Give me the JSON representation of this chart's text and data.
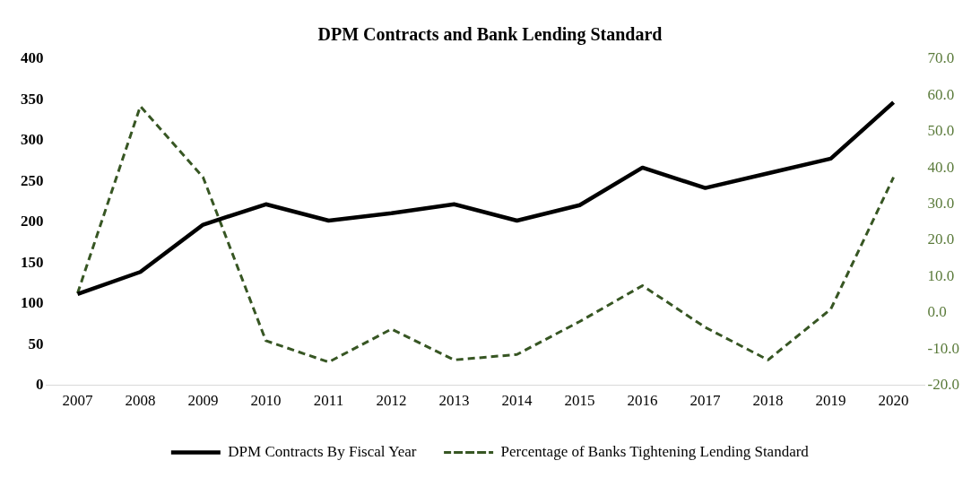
{
  "chart_data": {
    "type": "line",
    "title": "DPM Contracts and Bank Lending Standard",
    "categories": [
      "2007",
      "2008",
      "2009",
      "2010",
      "2011",
      "2012",
      "2013",
      "2014",
      "2015",
      "2016",
      "2017",
      "2018",
      "2019",
      "2020"
    ],
    "series": [
      {
        "name": "DPM Contracts By Fiscal Year",
        "color": "#000000",
        "line_style": "solid",
        "values": [
          112,
          139,
          197,
          222,
          202,
          211,
          222,
          202,
          221,
          267,
          242,
          260,
          278,
          347
        ]
      },
      {
        "name": "Percentage of Banks Tightening Lending Standard",
        "color": "#375623",
        "line_style": "dashed",
        "axis": "y2",
        "values": [
          5.4,
          57,
          37.4,
          -7.7,
          -13.6,
          -4.5,
          -13,
          -11.5,
          -2.4,
          7.5,
          -4,
          -13,
          1,
          37.4
        ]
      }
    ],
    "ylim": [
      0,
      400
    ],
    "yticks": [
      0,
      50,
      100,
      150,
      200,
      250,
      300,
      350,
      400
    ],
    "y2lim": [
      -20,
      70
    ],
    "y2ticks": [
      {
        "value": -20,
        "label": "-20.0"
      },
      {
        "value": -10,
        "label": "-10.0"
      },
      {
        "value": 0,
        "label": "0.0"
      },
      {
        "value": 10,
        "label": "10.0"
      },
      {
        "value": 20,
        "label": "20.0"
      },
      {
        "value": 30,
        "label": "30.0"
      },
      {
        "value": 40,
        "label": "40.0"
      },
      {
        "value": 50,
        "label": "50.0"
      },
      {
        "value": 60,
        "label": "60.0"
      },
      {
        "value": 70,
        "label": "70.0"
      }
    ],
    "grid": false,
    "legend": "bottom",
    "marker": "none"
  }
}
